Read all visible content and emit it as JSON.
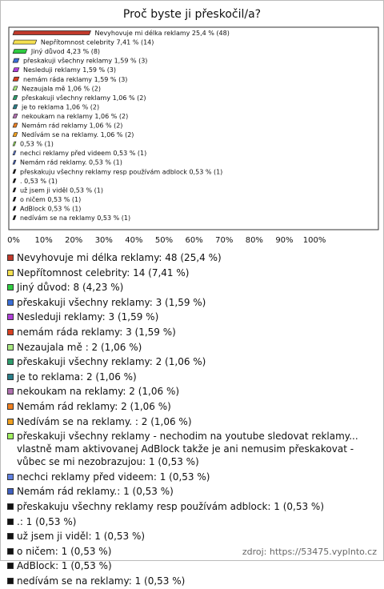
{
  "title": "Proč byste ji přeskočil/a?",
  "footer": "zdroj: https://53475.vyplnto.cz",
  "chart_data": {
    "type": "bar",
    "orientation": "horizontal",
    "grid": false,
    "values": [
      25.4,
      7.41,
      4.23,
      1.59,
      1.59,
      1.59,
      1.06,
      1.06,
      1.06,
      1.06,
      1.06,
      1.06,
      0.53,
      0.53,
      0.53,
      0.53,
      0.53,
      0.53,
      0.53,
      0.53,
      0.53
    ],
    "value_labels": [
      "Nevyhovuje mi délka reklamy 25,4 % (48)",
      "Nepřítomnost celebrity 7,41 % (14)",
      "Jiný důvod 4,23 % (8)",
      "přeskakuji všechny reklamy 1,59 % (3)",
      "Nesleduji reklamy 1,59 % (3)",
      "nemám ráda reklamy 1,59 % (3)",
      "Nezaujala mě  1,06 % (2)",
      "přeskakuji všechny reklamy 1,06 % (2)",
      "je to reklama 1,06 % (2)",
      "nekoukam na reklamy 1,06 % (2)",
      "Nemám rád reklamy 1,06 % (2)",
      "Nedívám se na reklamy.  1,06 % (2)",
      "0,53 % (1)",
      "nechci reklamy před videem 0,53 % (1)",
      "Nemám rád reklamy. 0,53 % (1)",
      "přeskakuju všechny reklamy resp používám adblock 0,53 % (1)",
      ". 0,53 % (1)",
      "už jsem ji viděl 0,53 % (1)",
      "o ničem 0,53 % (1)",
      "AdBlock 0,53 % (1)",
      "nedívám se na reklamy 0,53 % (1)"
    ],
    "legend_labels": [
      "Nevyhovuje mi délka reklamy: 48 (25,4 %)",
      "Nepřítomnost celebrity: 14 (7,41 %)",
      "Jiný důvod: 8 (4,23 %)",
      "přeskakuji všechny reklamy: 3 (1,59 %)",
      "Nesleduji reklamy: 3 (1,59 %)",
      "nemám ráda reklamy: 3 (1,59 %)",
      "Nezaujala mě : 2 (1,06 %)",
      "přeskakuji všechny reklamy: 2 (1,06 %)",
      "je to reklama: 2 (1,06 %)",
      "nekoukam na reklamy: 2 (1,06 %)",
      "Nemám rád reklamy: 2 (1,06 %)",
      "Nedívám se na reklamy. : 2 (1,06 %)",
      "přeskakuji všechny reklamy - nechodim na youtube sledovat reklamy... vlastně mam aktivovanej AdBlock takže je ani nemusim přeskakovat - vůbec se mi nezobrazujou: 1 (0,53 %)",
      "nechci reklamy před videem: 1 (0,53 %)",
      "Nemám rád reklamy.: 1 (0,53 %)",
      "přeskakuju všechny reklamy resp používám adblock: 1 (0,53 %)",
      ".: 1 (0,53 %)",
      "už jsem ji viděl: 1 (0,53 %)",
      "o ničem: 1 (0,53 %)",
      "AdBlock: 1 (0,53 %)",
      "nedívám se na reklamy: 1 (0,53 %)"
    ],
    "colors": [
      "#c0392b",
      "#f5e050",
      "#2ecc40",
      "#3a6fd8",
      "#b040d8",
      "#d84020",
      "#a8e880",
      "#2e9e6e",
      "#2a7f8a",
      "#b070b0",
      "#f08020",
      "#f0a020",
      "#a0f060",
      "#6080e0",
      "#4060c0",
      "#111111",
      "#111111",
      "#111111",
      "#111111",
      "#111111",
      "#111111"
    ],
    "xlim": [
      0,
      121
    ],
    "xticks": [
      {
        "value": 0,
        "label": "0%"
      },
      {
        "value": 10,
        "label": "10%"
      },
      {
        "value": 20,
        "label": "20%"
      },
      {
        "value": 30,
        "label": "30%"
      },
      {
        "value": 40,
        "label": "40%"
      },
      {
        "value": 50,
        "label": "50%"
      },
      {
        "value": 60,
        "label": "60%"
      },
      {
        "value": 70,
        "label": "70%"
      },
      {
        "value": 80,
        "label": "80%"
      },
      {
        "value": 90,
        "label": "90%"
      },
      {
        "value": 100,
        "label": "100%"
      }
    ]
  }
}
